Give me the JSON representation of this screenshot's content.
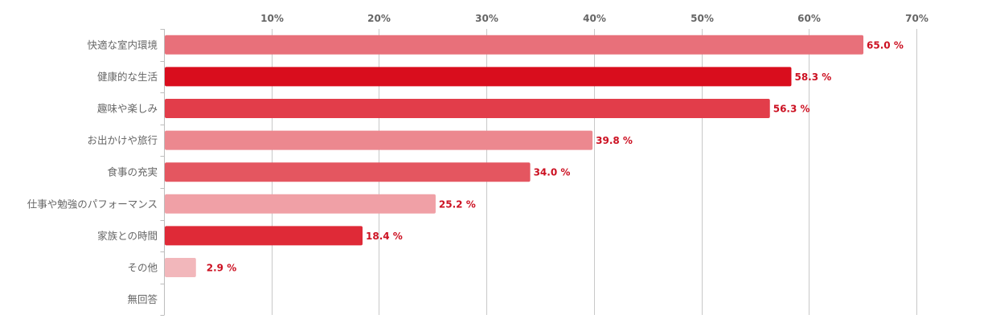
{
  "chart_data": {
    "type": "bar",
    "orientation": "horizontal",
    "xlim": [
      0,
      70
    ],
    "x_ticks": [
      10,
      20,
      30,
      40,
      50,
      60,
      70
    ],
    "x_tick_labels": [
      "10%",
      "20%",
      "30%",
      "40%",
      "50%",
      "60%",
      "70%"
    ],
    "grid": true,
    "categories": [
      "快適な室内環境",
      "健康的な生活",
      "趣味や楽しみ",
      "お出かけや旅行",
      "食事の充実",
      "仕事や勉強のパフォーマンス",
      "家族との時間",
      "その他",
      "無回答"
    ],
    "values": [
      65.0,
      58.3,
      56.3,
      39.8,
      34.0,
      25.2,
      18.4,
      2.9,
      null
    ],
    "data_labels": [
      "65.0 %",
      "58.3 %",
      "56.3 %",
      "39.8 %",
      "34.0 %",
      "25.2 %",
      "18.4 %",
      "2.9 %",
      ""
    ],
    "colors": [
      "#e8707a",
      "#d90d1d",
      "#e23d4a",
      "#ec888f",
      "#e45660",
      "#f0a0a6",
      "#df2a37",
      "#f2b7bb",
      "#ffffff"
    ],
    "label_color": "#cc1122"
  }
}
